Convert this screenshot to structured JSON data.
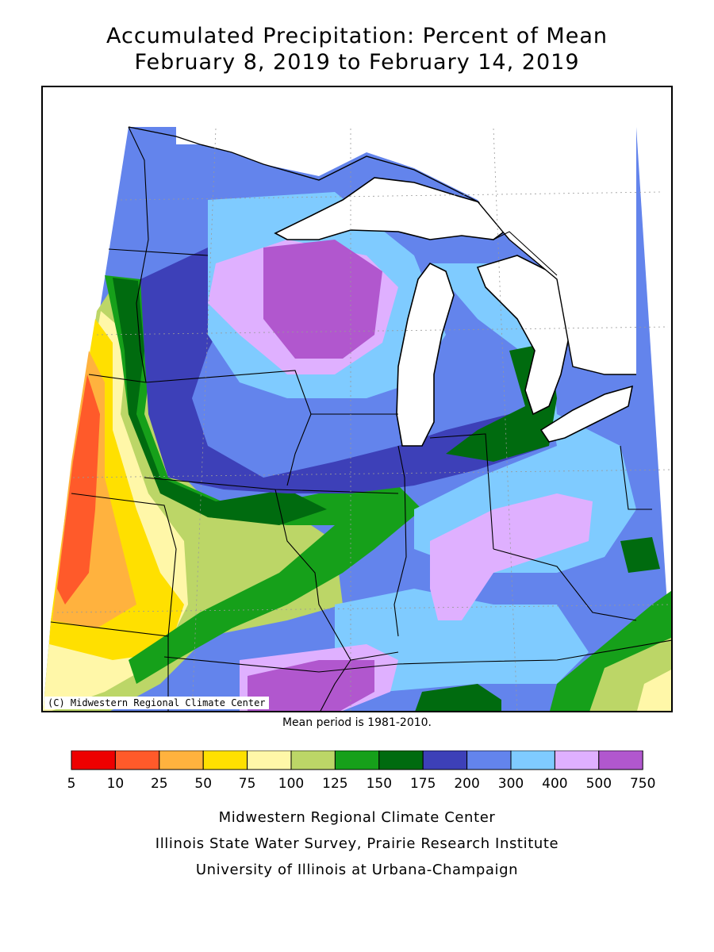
{
  "title": {
    "line1": "Accumulated Precipitation: Percent of Mean",
    "line2": "February 8, 2019 to February 14, 2019"
  },
  "map": {
    "copyright": "(C) Midwestern Regional Climate Center",
    "mean_period": "Mean period is 1981-2010."
  },
  "legend": {
    "ticks": [
      "5",
      "10",
      "25",
      "50",
      "75",
      "100",
      "125",
      "150",
      "175",
      "200",
      "300",
      "400",
      "500",
      "750"
    ],
    "colors": [
      "#ee0000",
      "#ff5a2a",
      "#ffb23e",
      "#ffe000",
      "#fff7a8",
      "#bcd667",
      "#16a01a",
      "#006b0f",
      "#3d40b8",
      "#6384ec",
      "#7fcbff",
      "#dfb0ff",
      "#b157ce"
    ]
  },
  "credits": {
    "line1": "Midwestern Regional Climate Center",
    "line2": "Illinois State Water Survey, Prairie Research Institute",
    "line3": "University of Illinois at Urbana-Champaign"
  }
}
